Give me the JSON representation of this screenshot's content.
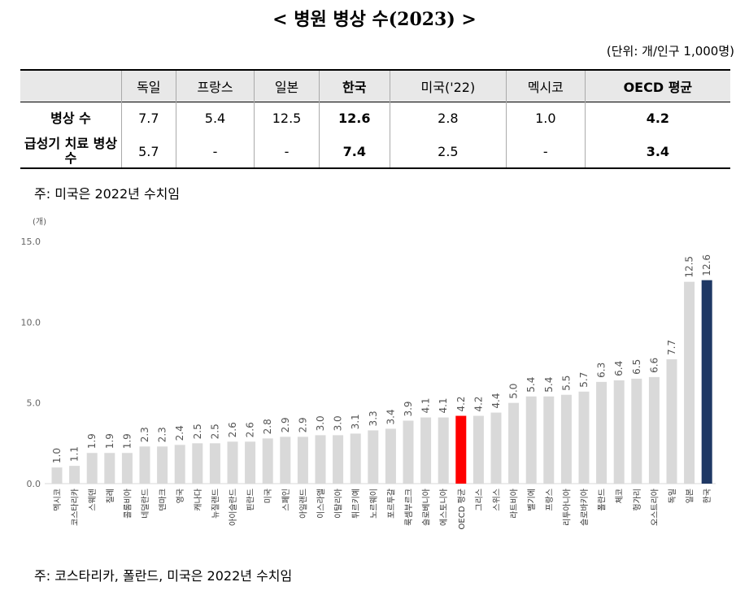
{
  "title": "< 병원 병상 수(2023) >",
  "unit": "(단위: 개/인구 1,000명)",
  "table": {
    "headers": [
      "",
      "독일",
      "프랑스",
      "일본",
      "한국",
      "미국('22)",
      "멕시코",
      "OECD 평균"
    ],
    "rows": [
      {
        "label": "병상 수",
        "values": [
          "7.7",
          "5.4",
          "12.5",
          "12.6",
          "2.8",
          "1.0",
          "4.2"
        ]
      },
      {
        "label": "급성기 치료 병상 수",
        "values": [
          "5.7",
          "-",
          "-",
          "7.4",
          "2.5",
          "-",
          "3.4"
        ]
      }
    ]
  },
  "table_note": "주: 미국은 2022년 수치임",
  "chart_note": "주: 코스타리카, 폴란드, 미국은 2022년 수치임",
  "chart_data": {
    "type": "bar",
    "ylabel": "(개)",
    "ylim": [
      0,
      15
    ],
    "yticks": [
      "0.0",
      "5.0",
      "10.0",
      "15.0"
    ],
    "grid": false,
    "categories": [
      "멕시코",
      "코스타리카",
      "스웨덴",
      "칠레",
      "콜롬비아",
      "네덜란드",
      "덴마크",
      "영국",
      "캐나다",
      "뉴질랜드",
      "아이슬란드",
      "핀란드",
      "미국",
      "스페인",
      "아일랜드",
      "이스라엘",
      "이탈리아",
      "튀르키예",
      "노르웨이",
      "포르투갈",
      "룩셈부르크",
      "슬로베니아",
      "에스토니아",
      "OECD 평균",
      "그리스",
      "스위스",
      "라트비아",
      "벨기에",
      "프랑스",
      "리투아니아",
      "슬로바키아",
      "폴란드",
      "체코",
      "헝가리",
      "오스트리아",
      "독일",
      "일본",
      "한국"
    ],
    "values": [
      1.0,
      1.1,
      1.9,
      1.9,
      1.9,
      2.3,
      2.3,
      2.4,
      2.5,
      2.5,
      2.6,
      2.6,
      2.8,
      2.9,
      2.9,
      3.0,
      3.0,
      3.1,
      3.3,
      3.4,
      3.9,
      4.1,
      4.1,
      4.2,
      4.2,
      4.4,
      5.0,
      5.4,
      5.4,
      5.5,
      5.7,
      6.3,
      6.4,
      6.5,
      6.6,
      7.7,
      12.5,
      12.6
    ],
    "colors": {
      "default": "#d9d9d9",
      "OECD 평균": "#ff0000",
      "한국": "#1f3864"
    }
  }
}
